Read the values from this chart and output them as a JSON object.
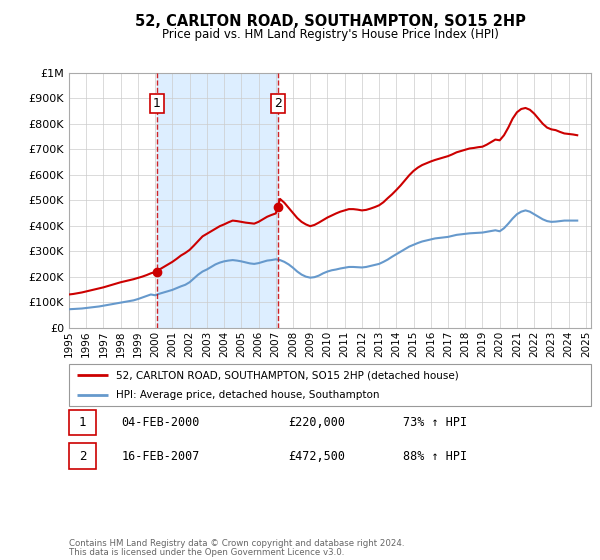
{
  "title": "52, CARLTON ROAD, SOUTHAMPTON, SO15 2HP",
  "subtitle": "Price paid vs. HM Land Registry's House Price Index (HPI)",
  "background_color": "#ffffff",
  "plot_bg_color": "#ffffff",
  "grid_color": "#cccccc",
  "ylim": [
    0,
    1000000
  ],
  "yticks": [
    0,
    100000,
    200000,
    300000,
    400000,
    500000,
    600000,
    700000,
    800000,
    900000,
    1000000
  ],
  "ytick_labels": [
    "£0",
    "£100K",
    "£200K",
    "£300K",
    "£400K",
    "£500K",
    "£600K",
    "£700K",
    "£800K",
    "£900K",
    "£1M"
  ],
  "xlim_start": 1995.0,
  "xlim_end": 2025.3,
  "xticks": [
    1995,
    1996,
    1997,
    1998,
    1999,
    2000,
    2001,
    2002,
    2003,
    2004,
    2005,
    2006,
    2007,
    2008,
    2009,
    2010,
    2011,
    2012,
    2013,
    2014,
    2015,
    2016,
    2017,
    2018,
    2019,
    2020,
    2021,
    2022,
    2023,
    2024,
    2025
  ],
  "red_line_color": "#cc0000",
  "blue_line_color": "#6699cc",
  "shade_color": "#ddeeff",
  "marker1_x": 2000.1,
  "marker1_y": 220000,
  "marker2_x": 2007.12,
  "marker2_y": 472500,
  "vline1_x": 2000.1,
  "vline2_x": 2007.12,
  "legend_label_red": "52, CARLTON ROAD, SOUTHAMPTON, SO15 2HP (detached house)",
  "legend_label_blue": "HPI: Average price, detached house, Southampton",
  "annotation1_label": "1",
  "annotation1_date": "04-FEB-2000",
  "annotation1_price": "£220,000",
  "annotation1_hpi": "73% ↑ HPI",
  "annotation2_label": "2",
  "annotation2_date": "16-FEB-2007",
  "annotation2_price": "£472,500",
  "annotation2_hpi": "88% ↑ HPI",
  "footnote1": "Contains HM Land Registry data © Crown copyright and database right 2024.",
  "footnote2": "This data is licensed under the Open Government Licence v3.0.",
  "hpi_data_x": [
    1995.0,
    1995.25,
    1995.5,
    1995.75,
    1996.0,
    1996.25,
    1996.5,
    1996.75,
    1997.0,
    1997.25,
    1997.5,
    1997.75,
    1998.0,
    1998.25,
    1998.5,
    1998.75,
    1999.0,
    1999.25,
    1999.5,
    1999.75,
    2000.0,
    2000.25,
    2000.5,
    2000.75,
    2001.0,
    2001.25,
    2001.5,
    2001.75,
    2002.0,
    2002.25,
    2002.5,
    2002.75,
    2003.0,
    2003.25,
    2003.5,
    2003.75,
    2004.0,
    2004.25,
    2004.5,
    2004.75,
    2005.0,
    2005.25,
    2005.5,
    2005.75,
    2006.0,
    2006.25,
    2006.5,
    2006.75,
    2007.0,
    2007.25,
    2007.5,
    2007.75,
    2008.0,
    2008.25,
    2008.5,
    2008.75,
    2009.0,
    2009.25,
    2009.5,
    2009.75,
    2010.0,
    2010.25,
    2010.5,
    2010.75,
    2011.0,
    2011.25,
    2011.5,
    2011.75,
    2012.0,
    2012.25,
    2012.5,
    2012.75,
    2013.0,
    2013.25,
    2013.5,
    2013.75,
    2014.0,
    2014.25,
    2014.5,
    2014.75,
    2015.0,
    2015.25,
    2015.5,
    2015.75,
    2016.0,
    2016.25,
    2016.5,
    2016.75,
    2017.0,
    2017.25,
    2017.5,
    2017.75,
    2018.0,
    2018.25,
    2018.5,
    2018.75,
    2019.0,
    2019.25,
    2019.5,
    2019.75,
    2020.0,
    2020.25,
    2020.5,
    2020.75,
    2021.0,
    2021.25,
    2021.5,
    2021.75,
    2022.0,
    2022.25,
    2022.5,
    2022.75,
    2023.0,
    2023.25,
    2023.5,
    2023.75,
    2024.0,
    2024.25,
    2024.5
  ],
  "hpi_data_y": [
    72000,
    73000,
    74000,
    75000,
    77000,
    79000,
    81000,
    83000,
    86000,
    89000,
    92000,
    95000,
    98000,
    101000,
    104000,
    107000,
    112000,
    118000,
    124000,
    130000,
    127000,
    133000,
    138000,
    143000,
    148000,
    155000,
    162000,
    168000,
    178000,
    193000,
    208000,
    220000,
    228000,
    238000,
    248000,
    255000,
    260000,
    263000,
    265000,
    263000,
    260000,
    256000,
    252000,
    250000,
    253000,
    258000,
    263000,
    265000,
    268000,
    265000,
    258000,
    248000,
    235000,
    220000,
    208000,
    200000,
    196000,
    198000,
    204000,
    213000,
    220000,
    225000,
    228000,
    232000,
    235000,
    238000,
    238000,
    237000,
    236000,
    238000,
    242000,
    246000,
    250000,
    258000,
    267000,
    278000,
    288000,
    298000,
    308000,
    318000,
    325000,
    332000,
    338000,
    342000,
    346000,
    350000,
    352000,
    354000,
    356000,
    360000,
    364000,
    366000,
    368000,
    370000,
    371000,
    372000,
    373000,
    376000,
    379000,
    382000,
    378000,
    390000,
    408000,
    428000,
    445000,
    455000,
    460000,
    455000,
    445000,
    435000,
    425000,
    418000,
    415000,
    416000,
    418000,
    420000,
    420000,
    420000,
    420000
  ],
  "red_data_x": [
    1995.0,
    1995.25,
    1995.5,
    1995.75,
    1996.0,
    1996.25,
    1996.5,
    1996.75,
    1997.0,
    1997.25,
    1997.5,
    1997.75,
    1998.0,
    1998.25,
    1998.5,
    1998.75,
    1999.0,
    1999.25,
    1999.5,
    1999.75,
    2000.0,
    2000.1,
    2000.25,
    2000.5,
    2000.75,
    2001.0,
    2001.25,
    2001.5,
    2001.75,
    2002.0,
    2002.25,
    2002.5,
    2002.75,
    2003.0,
    2003.25,
    2003.5,
    2003.75,
    2004.0,
    2004.25,
    2004.5,
    2004.75,
    2005.0,
    2005.25,
    2005.5,
    2005.75,
    2006.0,
    2006.25,
    2006.5,
    2006.75,
    2007.0,
    2007.12,
    2007.25,
    2007.5,
    2007.75,
    2008.0,
    2008.25,
    2008.5,
    2008.75,
    2009.0,
    2009.25,
    2009.5,
    2009.75,
    2010.0,
    2010.25,
    2010.5,
    2010.75,
    2011.0,
    2011.25,
    2011.5,
    2011.75,
    2012.0,
    2012.25,
    2012.5,
    2012.75,
    2013.0,
    2013.25,
    2013.5,
    2013.75,
    2014.0,
    2014.25,
    2014.5,
    2014.75,
    2015.0,
    2015.25,
    2015.5,
    2015.75,
    2016.0,
    2016.25,
    2016.5,
    2016.75,
    2017.0,
    2017.25,
    2017.5,
    2017.75,
    2018.0,
    2018.25,
    2018.5,
    2018.75,
    2019.0,
    2019.25,
    2019.5,
    2019.75,
    2020.0,
    2020.25,
    2020.5,
    2020.75,
    2021.0,
    2021.25,
    2021.5,
    2021.75,
    2022.0,
    2022.25,
    2022.5,
    2022.75,
    2023.0,
    2023.25,
    2023.5,
    2023.75,
    2024.0,
    2024.25,
    2024.5
  ],
  "red_data_y": [
    130000,
    132000,
    135000,
    138000,
    142000,
    146000,
    150000,
    154000,
    158000,
    163000,
    168000,
    173000,
    178000,
    182000,
    186000,
    190000,
    195000,
    200000,
    206000,
    213000,
    218000,
    220000,
    228000,
    238000,
    248000,
    258000,
    270000,
    283000,
    293000,
    305000,
    322000,
    340000,
    358000,
    368000,
    378000,
    388000,
    398000,
    405000,
    413000,
    420000,
    418000,
    415000,
    412000,
    410000,
    408000,
    415000,
    425000,
    435000,
    442000,
    448000,
    472500,
    505000,
    490000,
    470000,
    450000,
    430000,
    415000,
    405000,
    398000,
    403000,
    412000,
    422000,
    432000,
    440000,
    448000,
    455000,
    460000,
    465000,
    465000,
    463000,
    460000,
    462000,
    467000,
    473000,
    480000,
    492000,
    508000,
    523000,
    540000,
    558000,
    578000,
    598000,
    615000,
    628000,
    638000,
    645000,
    652000,
    658000,
    663000,
    668000,
    673000,
    680000,
    688000,
    693000,
    698000,
    703000,
    705000,
    708000,
    710000,
    718000,
    728000,
    738000,
    735000,
    755000,
    785000,
    820000,
    845000,
    858000,
    862000,
    855000,
    840000,
    820000,
    800000,
    785000,
    778000,
    775000,
    768000,
    762000,
    760000,
    758000,
    755000
  ]
}
